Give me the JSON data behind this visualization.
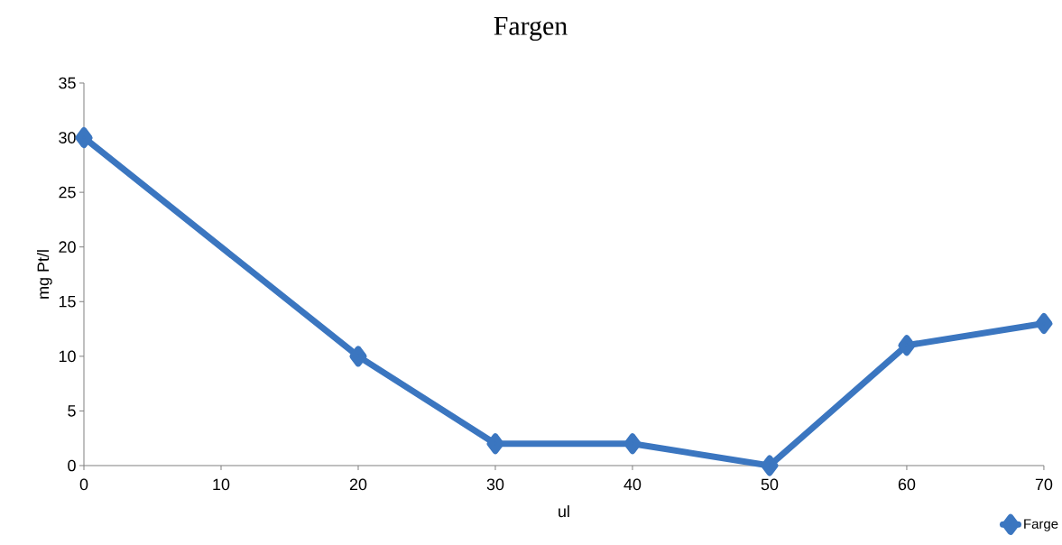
{
  "chart_data": {
    "type": "line",
    "title": "Fargen",
    "xlabel": "ul",
    "ylabel": "mg Pt/l",
    "x": [
      0,
      20,
      30,
      40,
      50,
      60,
      70
    ],
    "series": [
      {
        "name": "Farge",
        "color": "#3b76c0",
        "values": [
          30,
          10,
          2,
          2,
          0,
          11,
          13
        ]
      }
    ],
    "xlim": [
      0,
      70
    ],
    "xticks": [
      0,
      10,
      20,
      30,
      40,
      50,
      60,
      70
    ],
    "ylim": [
      0,
      35
    ],
    "yticks": [
      0,
      5,
      10,
      15,
      20,
      25,
      30,
      35
    ],
    "legend": "bottom right",
    "marker": "diamond",
    "line_style": "solid"
  }
}
